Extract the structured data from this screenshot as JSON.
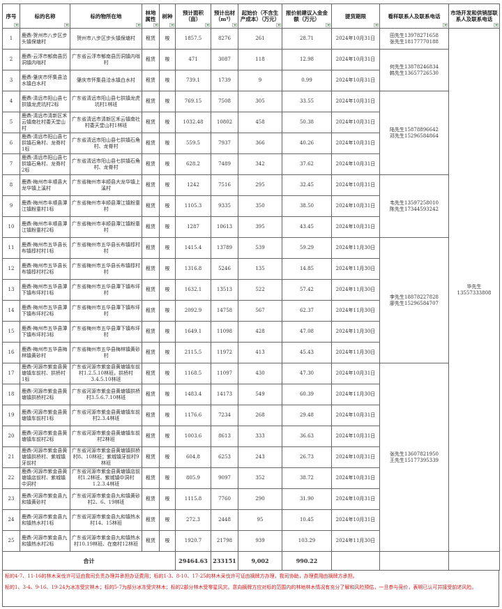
{
  "headers": [
    "序号",
    "标的名称",
    "标的物所在地",
    "林地属性",
    "树种",
    "预计面积（亩）",
    "预计出材（m³）",
    "起始价（不含生产成本）（万元）",
    "报价前建议入金金额（万元）",
    "提货期限",
    "看样联系人及联系电话",
    "市场开发和供销部联系人及联系电话"
  ],
  "rows": [
    {
      "no": "1",
      "name": "鹿鼎-贺州市八步区步头镇保塘村",
      "location": "贺州市八步区步头镇保塘村",
      "land": "租赁",
      "species": "桉",
      "area": "1857.5",
      "volume": "8276",
      "start_price": "261",
      "deposit": "28.71",
      "deadline": "2024年10月31日"
    },
    {
      "no": "2",
      "name": "鹿鼎-云浮市郁南县历洞镇内嗡村",
      "location": "广东省云浮市郁南县历洞镇内嗡村",
      "land": "租赁",
      "species": "桉",
      "area": "471",
      "volume": "3087",
      "start_price": "118",
      "deposit": "12.98",
      "deadline": "2024年10月31日"
    },
    {
      "no": "3",
      "name": "鹿鼎-肇庆市怀集县洽水镇白水村",
      "location": "肇庆市怀集县洽水镇白水村",
      "land": "租赁",
      "species": "桉",
      "area": "739.1",
      "volume": "1739",
      "start_price": "9",
      "deposit": "0.99",
      "deadline": "2024年10月31日"
    },
    {
      "no": "4",
      "name": "鹿鼎-清远市阳山县七拱镇龙虎坑村2标",
      "location": "广东省清远市阳山县七拱镇龙虎坑村1林班",
      "land": "租赁",
      "species": "桉",
      "area": "769.15",
      "volume": "7508",
      "start_price": "305",
      "deposit": "33.55",
      "deadline": "2024年10月31日"
    },
    {
      "no": "5",
      "name": "鹿鼎-清远市清新区禾云镇南社村委天堂山村",
      "location": "广东省清远市清新区禾云镇南社村委天堂山村1林班",
      "land": "租赁",
      "species": "桉",
      "area": "1032.48",
      "volume": "10802",
      "start_price": "458",
      "deposit": "50.38",
      "deadline": "2024年10月31日"
    },
    {
      "no": "6",
      "name": "鹿鼎-清远市阳山县七拱镇石角村、龙脊村1标",
      "location": "广东省清远市阳山县七拱镇石角村、龙脊村",
      "land": "租赁",
      "species": "桉",
      "area": "559.5",
      "volume": "7937",
      "start_price": "366",
      "deposit": "40.26",
      "deadline": "2024年10月31日"
    },
    {
      "no": "7",
      "name": "鹿鼎-清远市阳山县七拱镇石角村、龙脊村2标",
      "location": "广东省清远市阳山县七拱镇石角村、龙脊村",
      "land": "租赁",
      "species": "桉",
      "area": "628.2",
      "volume": "7489",
      "start_price": "342",
      "deposit": "37.62",
      "deadline": "2024年10月31日"
    },
    {
      "no": "8",
      "name": "鹿鼎-梅州市丰顺县大龙华镇上溪村",
      "location": "广东省梅州市丰顺县大龙华镇上溪村",
      "land": "租赁",
      "species": "桉",
      "area": "1242",
      "volume": "7516",
      "start_price": "295",
      "deposit": "32.45",
      "deadline": "2024年10月31日"
    },
    {
      "no": "9",
      "name": "鹿鼎-梅州市丰顺县潭江镇粉童村1标",
      "location": "广东省梅州市丰顺县潭江镇粉童村",
      "land": "租赁",
      "species": "桉",
      "area": "1105.3",
      "volume": "9335",
      "start_price": "350",
      "deposit": "38.50",
      "deadline": "2024年10月31日"
    },
    {
      "no": "10",
      "name": "鹿鼎-梅州市丰顺县潭江镇粉童村2标",
      "location": "广东省梅州市丰顺县潭江镇粉童村",
      "land": "租赁",
      "species": "桉",
      "area": "1287",
      "volume": "10613",
      "start_price": "395",
      "deposit": "43.45",
      "deadline": "2024年10月31日"
    },
    {
      "no": "11",
      "name": "鹿鼎-梅州市五华县长布镇椁村村1标",
      "location": "广东省梅州市五华县长布镇椁村村",
      "land": "租赁",
      "species": "桉",
      "area": "1415.4",
      "volume": "13789",
      "start_price": "539",
      "deposit": "59.29",
      "deadline": "2024年11月30日"
    },
    {
      "no": "12",
      "name": "鹿鼎-梅州市五华县长布镇椁村村2标",
      "location": "广东省梅州市五华县长布镇椁村村",
      "land": "租赁",
      "species": "桉",
      "area": "1316.8",
      "volume": "5246",
      "start_price": "135",
      "deposit": "14.85",
      "deadline": "2024年11月30日"
    },
    {
      "no": "13",
      "name": "鹿鼎-梅州市五华县潭下镇布坪村1标",
      "location": "广东省梅州市五华县潭下镇布坪村",
      "land": "租赁",
      "species": "桉",
      "area": "1632.1",
      "volume": "13513",
      "start_price": "522",
      "deposit": "57.42",
      "deadline": "2024年11月30日"
    },
    {
      "no": "14",
      "name": "鹿鼎-梅州市五华县潭下镇布坪村2标",
      "location": "广东省梅州市五华县潭下镇布坪村",
      "land": "租赁",
      "species": "桉",
      "area": "2092.9",
      "volume": "14758",
      "start_price": "567",
      "deposit": "62.37",
      "deadline": "2024年11月30日"
    },
    {
      "no": "15",
      "name": "鹿鼎-梅州市五华县潭下镇布坪村3标",
      "location": "广东省梅州市五华县潭下镇布坪村",
      "land": "租赁",
      "species": "桉",
      "area": "1649.1",
      "volume": "11098",
      "start_price": "428",
      "deposit": "47.08",
      "deadline": "2024年11月30日"
    },
    {
      "no": "16",
      "name": "鹿鼎-梅州市五华县梅林镇黄砂村",
      "location": "广东省梅州市五华县梅林镇黄砂村",
      "land": "租赁",
      "species": "桉",
      "area": "2115.5",
      "volume": "11972",
      "start_price": "413",
      "deposit": "45.43",
      "deadline": "2024年11月30日"
    },
    {
      "no": "17",
      "name": "鹿鼎-河源市紫金县黄塘镇车前村、拱桥村1标",
      "location": "广东省河源市紫金县黄塘镇车前村1.2.5.10林班，拱桥村3.4.5.10林班",
      "land": "租赁",
      "species": "桉",
      "area": "1168.5",
      "volume": "11097",
      "start_price": "430",
      "deposit": "47.30",
      "deadline": "2024年10月31日"
    },
    {
      "no": "18",
      "name": "鹿鼎-河源市紫金县黄塘镇拱桥村2标",
      "location": "广东省河源市紫金县黄塘镇拱桥村3.5.6.7.10林班",
      "land": "租赁",
      "species": "桉",
      "area": "1483.4",
      "volume": "14173",
      "start_price": "549",
      "deposit": "60.39",
      "deadline": "2024年11月30日"
    },
    {
      "no": "19",
      "name": "鹿鼎-河源市紫金县黄塘镇车前村1标",
      "location": "广东省河源市紫金县黄塘镇车前村2.3.4林班",
      "land": "租赁",
      "species": "桉",
      "area": "1176.6",
      "volume": "7234",
      "start_price": "268",
      "deposit": "29.48",
      "deadline": "2024年10月31日"
    },
    {
      "no": "20",
      "name": "鹿鼎-河源市紫金县黄塘镇车前村2标",
      "location": "广东省河源市紫金县黄塘镇车前村2林班",
      "land": "租赁",
      "species": "桉",
      "area": "1003.6",
      "volume": "8613",
      "start_price": "333",
      "deposit": "36.63",
      "deadline": "2024年10月31日"
    },
    {
      "no": "21",
      "name": "鹿鼎-河源市紫金县黄塘镇拱桥村、紫城镇牙前村",
      "location": "广东省河源市紫金县黄塘镇拱桥村8、10林班；紫城镇牙前村9林班",
      "land": "租赁",
      "species": "桉",
      "area": "604.8",
      "volume": "6253",
      "start_price": "243",
      "deposit": "26.73",
      "deadline": "2024年10月31日"
    },
    {
      "no": "22",
      "name": "鹿鼎-河源市紫金县黄塘镇店前村、紫城镇中洞村",
      "location": "广东省河源市紫金县黄塘镇店前村1.2林班、紫城镇中洞村1.2.3.4林班",
      "land": "租赁",
      "species": "桉",
      "area": "805.9",
      "volume": "9097",
      "start_price": "352",
      "deposit": "38.72",
      "deadline": "2024年10月31日"
    },
    {
      "no": "23",
      "name": "鹿鼎-河源市紫金县九和镇黄砂村",
      "location": "广东省河源市紫金县九和镇黄砂村2、6、19林班",
      "land": "租赁",
      "species": "桉",
      "area": "1115.8",
      "volume": "7760",
      "start_price": "290",
      "deposit": "31.90",
      "deadline": "2024年10月31日"
    },
    {
      "no": "24",
      "name": "鹿鼎-河源市紫金县九和镇热水村1标",
      "location": "广东省河源市紫金县九和镇热水村14、15林班",
      "land": "租赁",
      "species": "桉",
      "area": "272.3",
      "volume": "2448",
      "start_price": "95",
      "deposit": "10.45",
      "deadline": "2024年10月31日"
    },
    {
      "no": "25",
      "name": "鹿鼎-河源市紫金县九和镇热水村2标",
      "location": "广东省河源市紫金县九和镇热水村10.19林班、在南村12林班",
      "land": "租赁",
      "species": "桉",
      "area": "1920.7",
      "volume": "21798",
      "start_price": "939",
      "deposit": "103.29",
      "deadline": "2024年11月30日"
    }
  ],
  "viewing_contacts": [
    {
      "covers_rows": [
        1,
        1
      ],
      "text": "田先生13978271658\n张先生18177770188"
    },
    {
      "covers_rows": [
        2,
        3
      ],
      "text": "何先生13878246834\n韩先生13657726530"
    },
    {
      "covers_rows": [
        4,
        7
      ],
      "text": "陆先生15878896642\n邓先生15296584864"
    },
    {
      "covers_rows": [
        8,
        10
      ],
      "text": "韦先生13597258010\n陈先生17344593242"
    },
    {
      "covers_rows": [
        11,
        16
      ],
      "text": "李先生18878227828\n廖先生15296584707"
    },
    {
      "covers_rows": [
        17,
        25
      ],
      "text": "张先生13607821950\n王先生15177395339"
    }
  ],
  "market_contact": {
    "covers_rows": [
      1,
      25
    ],
    "text": "华先生\n13557333808"
  },
  "total": {
    "label": "合计",
    "area": "29464.63",
    "volume": "233151",
    "start_price": "9,002",
    "deposit": "990.22"
  },
  "notes": [
    "标的4-7、11-16的林木采伐许可证由我司负责办理并承担办证费用；标的1-3、8-10、17-25的林木采伐许可证由摘牌方办理，我司协助，办理费用由摘牌方承担。",
    "标的1、3-4、9-16、19-24为冰冻受灾林木；标的5-7为部分冰冻受灾林木；标的2部分林木受零星风灾。意向摘牌方应对标的范围内的林地林木情况有充分了解和风险预估，一旦参与竞价，表明已认可并接受前述风险。"
  ],
  "colors": {
    "note_text": "#d21a1a",
    "filter_arrow": "#2a8a3a",
    "grid": "#666666"
  }
}
